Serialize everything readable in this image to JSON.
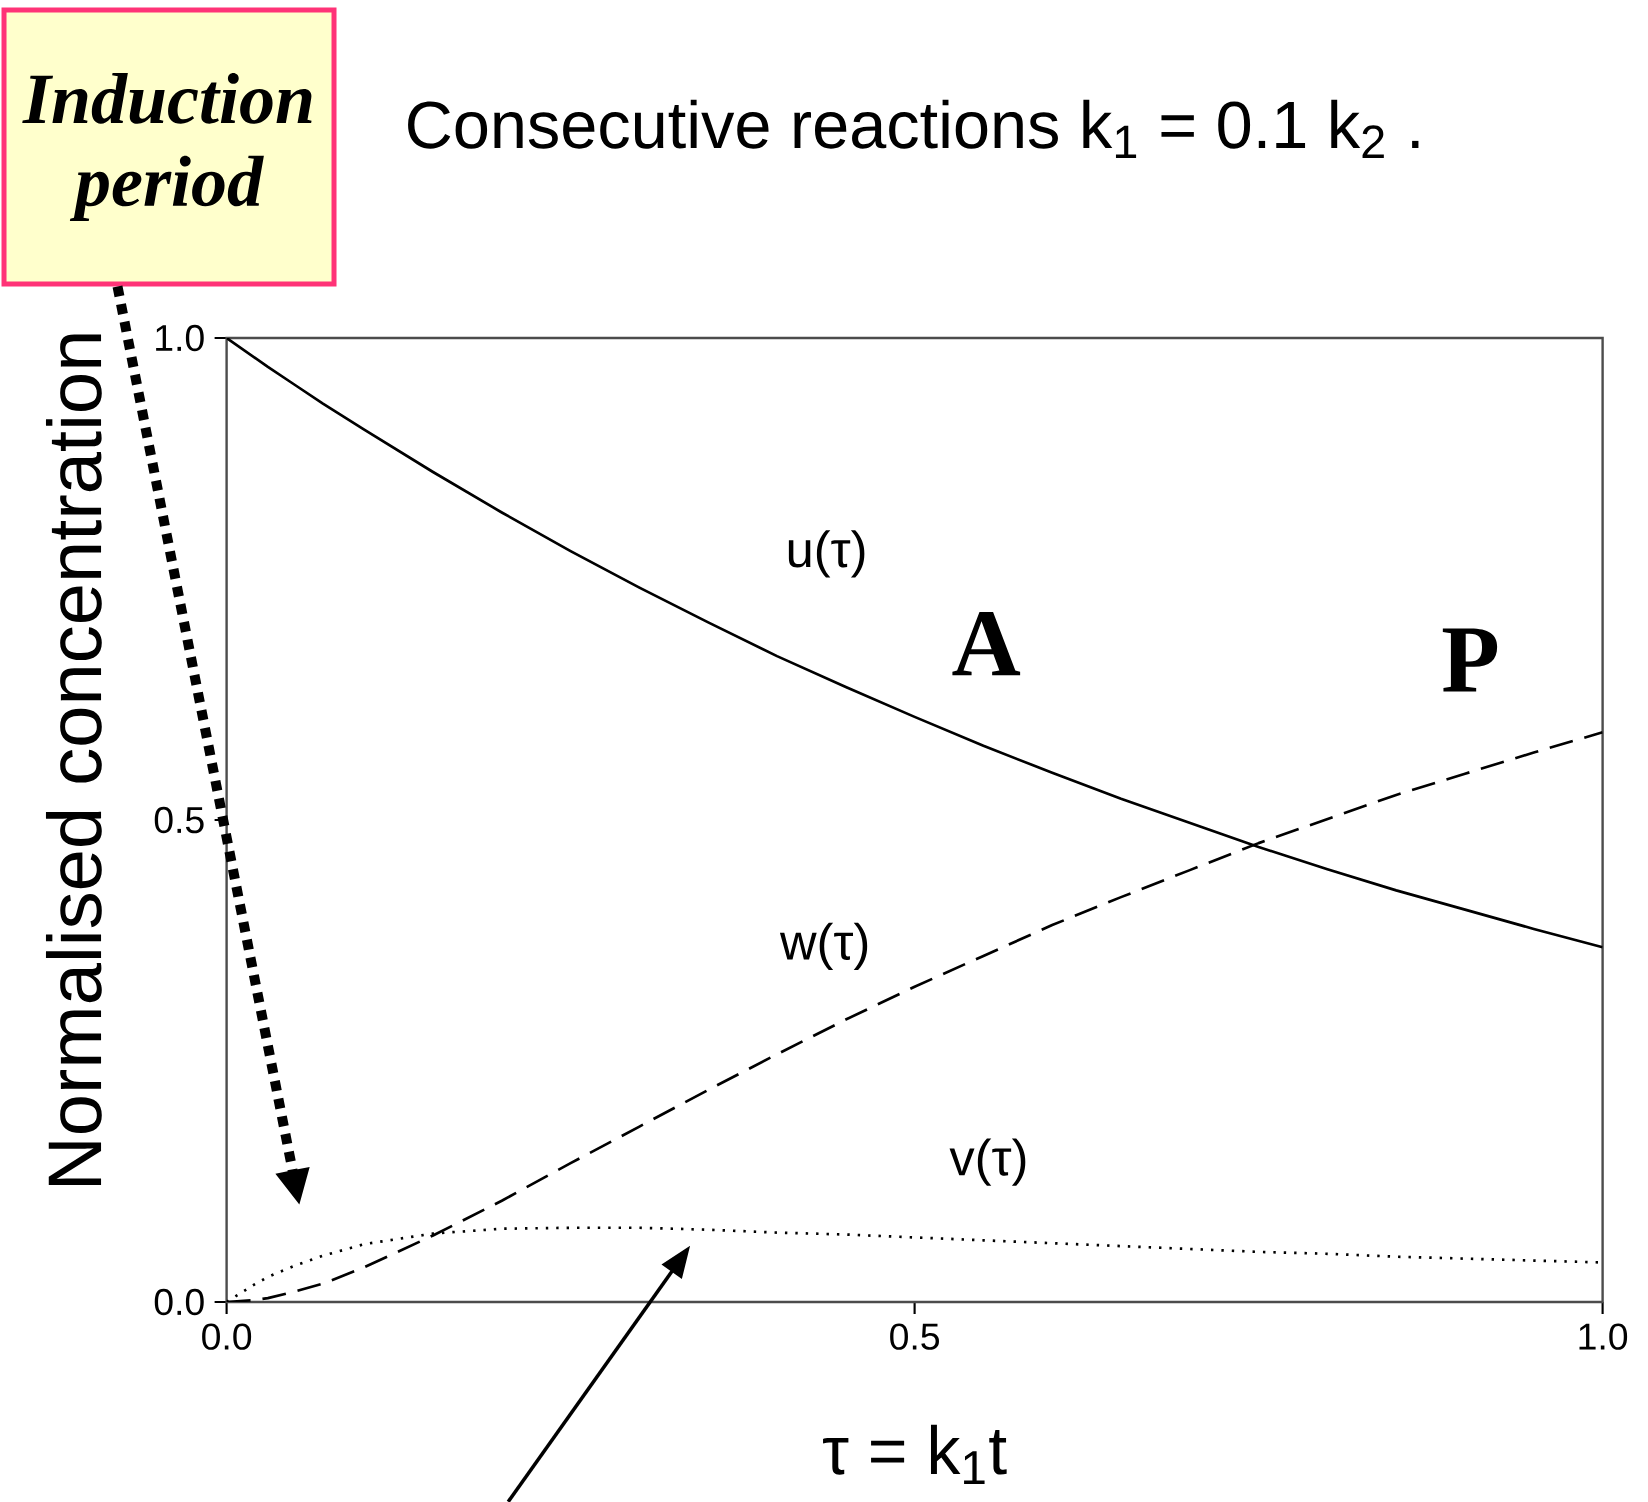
{
  "chart_data": {
    "type": "line",
    "title": "Consecutive reactions k$_{1}$ = 0.1 k$_{2}$ .",
    "xlabel": "τ = k$_{1}$t",
    "ylabel": "Normalised concentration",
    "x": [
      0,
      0.01,
      0.02,
      0.03,
      0.05,
      0.07,
      0.1,
      0.15,
      0.2,
      0.25,
      0.3,
      0.35,
      0.4,
      0.45,
      0.5,
      0.55,
      0.6,
      0.65,
      0.7,
      0.75,
      0.8,
      0.85,
      0.9,
      0.95,
      1
    ],
    "series": [
      {
        "name": "u(τ)",
        "color": "#000000",
        "line_style": "solid",
        "values": [
          1,
          0.99,
          0.98,
          0.97,
          0.951,
          0.932,
          0.905,
          0.861,
          0.819,
          0.779,
          0.741,
          0.705,
          0.67,
          0.638,
          0.607,
          0.577,
          0.549,
          0.522,
          0.497,
          0.472,
          0.449,
          0.427,
          0.407,
          0.387,
          0.368
        ]
      },
      {
        "name": "w(τ)",
        "color": "#000000",
        "line_style": "dashed",
        "values": [
          0,
          0.001,
          0.002,
          0.004,
          0.011,
          0.019,
          0.036,
          0.069,
          0.105,
          0.144,
          0.182,
          0.22,
          0.257,
          0.293,
          0.327,
          0.359,
          0.391,
          0.42,
          0.448,
          0.476,
          0.501,
          0.526,
          0.548,
          0.57,
          0.591
        ]
      },
      {
        "name": "v(τ)",
        "color": "#000000",
        "line_style": "dotted",
        "values": [
          0,
          0.009,
          0.018,
          0.026,
          0.038,
          0.048,
          0.06,
          0.071,
          0.076,
          0.077,
          0.077,
          0.075,
          0.072,
          0.07,
          0.067,
          0.064,
          0.061,
          0.058,
          0.055,
          0.052,
          0.05,
          0.047,
          0.045,
          0.043,
          0.041
        ]
      }
    ],
    "xlim": [
      0,
      1
    ],
    "ylim": [
      0,
      1
    ],
    "xticks": [
      {
        "value": 0,
        "label": "0.0"
      },
      {
        "value": 0.5,
        "label": "0.5"
      },
      {
        "value": 1,
        "label": "1.0"
      }
    ],
    "yticks": [
      {
        "value": 0,
        "label": "0.0"
      },
      {
        "value": 0.5,
        "label": "0.5"
      },
      {
        "value": 1,
        "label": "1.0"
      }
    ],
    "marker": "none",
    "annotations": [
      "Induction period",
      "A",
      "P"
    ]
  }
}
